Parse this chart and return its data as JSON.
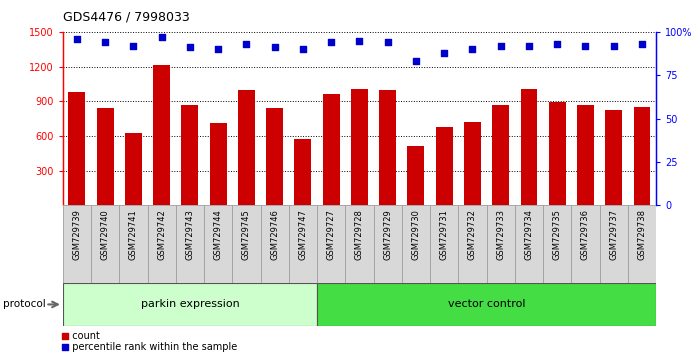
{
  "title": "GDS4476 / 7998033",
  "samples": [
    "GSM729739",
    "GSM729740",
    "GSM729741",
    "GSM729742",
    "GSM729743",
    "GSM729744",
    "GSM729745",
    "GSM729746",
    "GSM729747",
    "GSM729727",
    "GSM729728",
    "GSM729729",
    "GSM729730",
    "GSM729731",
    "GSM729732",
    "GSM729733",
    "GSM729734",
    "GSM729735",
    "GSM729736",
    "GSM729737",
    "GSM729738"
  ],
  "counts": [
    980,
    840,
    625,
    1210,
    870,
    710,
    1000,
    840,
    575,
    960,
    1010,
    1000,
    510,
    680,
    720,
    870,
    1010,
    890,
    870,
    820,
    850
  ],
  "percentile_ranks": [
    96,
    94,
    92,
    97,
    91,
    90,
    93,
    91,
    90,
    94,
    95,
    94,
    83,
    88,
    90,
    92,
    92,
    93,
    92,
    92,
    93
  ],
  "group1_label": "parkin expression",
  "group2_label": "vector control",
  "group1_count": 9,
  "group2_count": 12,
  "bar_color": "#cc0000",
  "dot_color": "#0000cc",
  "group1_color": "#ccffcc",
  "group2_color": "#44dd44",
  "ylim_left": [
    0,
    1500
  ],
  "ylim_right": [
    0,
    100
  ],
  "yticks_left": [
    300,
    600,
    900,
    1200,
    1500
  ],
  "yticks_right": [
    0,
    25,
    50,
    75,
    100
  ],
  "legend_count_label": "count",
  "legend_pct_label": "percentile rank within the sample",
  "protocol_label": "protocol"
}
